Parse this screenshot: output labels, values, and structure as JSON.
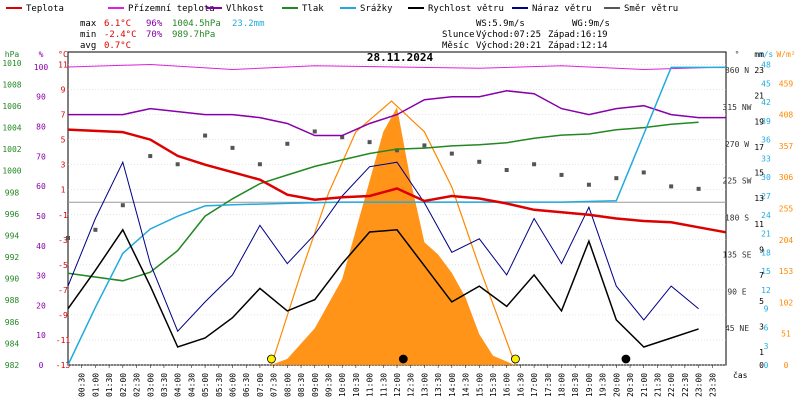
{
  "legend": [
    {
      "label": "Teplota",
      "color": "#dd0000"
    },
    {
      "label": "Přízemní teplota",
      "color": "#dd22dd"
    },
    {
      "label": "Vlhkost",
      "color": "#8800aa"
    },
    {
      "label": "Tlak",
      "color": "#228822"
    },
    {
      "label": "Srážky",
      "color": "#22aadd"
    },
    {
      "label": "Rychlost větru",
      "color": "#000000"
    },
    {
      "label": "Náraz větru",
      "color": "#000088"
    },
    {
      "label": "Směr větru",
      "color": "#555555"
    }
  ],
  "stats": {
    "max_label": "max",
    "min_label": "min",
    "avg_label": "avg",
    "max_temp": "6.1°C",
    "max_hum": "96%",
    "max_press": "1004.5hPa",
    "max_rain": "23.2mm",
    "min_temp": "-2.4°C",
    "min_hum": "70%",
    "min_press": "989.7hPa",
    "avg_temp": "0.7°C"
  },
  "wind_info": {
    "ws": "WS:5.9m/s",
    "wg": "WG:9m/s"
  },
  "sun": {
    "label": "Slunce",
    "rise": "Východ:07:25",
    "set": "Západ:16:19"
  },
  "moon": {
    "label": "Měsíc",
    "rise": "Východ:20:21",
    "set": "Západ:12:14"
  },
  "chart_data": {
    "type": "line",
    "title": "28.11.2024",
    "xlabel": "čas",
    "x_ticks": [
      "00:30",
      "01:00",
      "01:30",
      "02:00",
      "02:30",
      "03:00",
      "03:30",
      "04:00",
      "04:30",
      "05:00",
      "05:30",
      "06:00",
      "06:30",
      "07:00",
      "07:30",
      "08:00",
      "08:30",
      "09:00",
      "09:30",
      "10:00",
      "10:30",
      "11:00",
      "11:30",
      "12:00",
      "12:30",
      "13:00",
      "13:30",
      "14:00",
      "14:30",
      "15:00",
      "15:30",
      "16:00",
      "16:30",
      "17:00",
      "17:30",
      "18:00",
      "18:30",
      "19:00",
      "19:30",
      "20:00",
      "20:30",
      "21:00",
      "21:30",
      "22:00",
      "22:30",
      "23:00",
      "23:30"
    ],
    "axes": {
      "hpa": {
        "label": "hPa",
        "ticks": [
          "1010",
          "1008",
          "1006",
          "1004",
          "1002",
          "1000",
          "998",
          "996",
          "994",
          "992",
          "990",
          "988",
          "986",
          "984",
          "982"
        ],
        "range": [
          982,
          1011
        ]
      },
      "percent": {
        "label": "%",
        "ticks": [
          "100",
          "90",
          "80",
          "70",
          "60",
          "50",
          "40",
          "30",
          "20",
          "10",
          "0"
        ],
        "range": [
          0,
          105
        ]
      },
      "celsius": {
        "label": "°C",
        "ticks": [
          "11",
          "9",
          "7",
          "5",
          "3",
          "1",
          "-1",
          "-3",
          "-5",
          "-7",
          "-9",
          "-11",
          "-13"
        ],
        "range": [
          -13,
          12
        ]
      },
      "direction": {
        "label": "°",
        "ticks": [
          "360 N",
          "315 NW",
          "270 W",
          "225 SW",
          "180 S",
          "135 SE",
          "90 E",
          "45 NE"
        ],
        "range": [
          0,
          382
        ]
      },
      "ms": {
        "label": "m/s",
        "ticks": [
          "0",
          "3",
          "6",
          "9",
          "12",
          "15",
          "18",
          "21",
          "24",
          "27",
          "30",
          "33",
          "36",
          "39",
          "42",
          "45",
          "48"
        ],
        "range": [
          0,
          50
        ]
      },
      "mm": {
        "label": "mm",
        "ticks": [
          "0",
          "1",
          "3",
          "5",
          "7",
          "9",
          "11",
          "13",
          "15",
          "17",
          "19",
          "21",
          "23"
        ],
        "range": [
          0,
          24.4
        ]
      },
      "wm2": {
        "label": "W/m²",
        "ticks": [
          "0",
          "51",
          "102",
          "153",
          "204",
          "255",
          "306",
          "357",
          "408",
          "459"
        ],
        "range": [
          0,
          510
        ]
      }
    },
    "zero_line_celsius": 0,
    "temperature": [
      [
        0,
        5.8
      ],
      [
        2,
        5.6
      ],
      [
        3,
        5.0
      ],
      [
        4,
        3.7
      ],
      [
        5,
        3.0
      ],
      [
        6,
        2.4
      ],
      [
        7,
        1.8
      ],
      [
        8,
        0.6
      ],
      [
        9,
        0.2
      ],
      [
        10,
        0.4
      ],
      [
        11,
        0.5
      ],
      [
        12,
        1.1
      ],
      [
        13,
        0.1
      ],
      [
        14,
        0.5
      ],
      [
        15,
        0.3
      ],
      [
        16,
        -0.1
      ],
      [
        17,
        -0.6
      ],
      [
        18,
        -0.8
      ],
      [
        19,
        -1.0
      ],
      [
        20,
        -1.3
      ],
      [
        21,
        -1.5
      ],
      [
        22,
        -1.6
      ],
      [
        23,
        -2.0
      ],
      [
        24,
        -2.4
      ]
    ],
    "ground_temperature": [
      [
        0,
        10.8
      ],
      [
        3,
        11.0
      ],
      [
        6,
        10.6
      ],
      [
        9,
        10.9
      ],
      [
        12,
        10.8
      ],
      [
        15,
        10.7
      ],
      [
        18,
        10.9
      ],
      [
        21,
        10.6
      ],
      [
        24,
        10.8
      ]
    ],
    "humidity": [
      [
        0,
        84
      ],
      [
        2,
        84
      ],
      [
        3,
        86
      ],
      [
        4,
        85
      ],
      [
        5,
        84
      ],
      [
        6,
        84
      ],
      [
        7,
        83
      ],
      [
        8,
        81
      ],
      [
        9,
        77
      ],
      [
        10,
        77
      ],
      [
        11,
        81
      ],
      [
        12,
        84
      ],
      [
        13,
        89
      ],
      [
        14,
        90
      ],
      [
        15,
        90
      ],
      [
        16,
        92
      ],
      [
        17,
        91
      ],
      [
        18,
        86
      ],
      [
        19,
        84
      ],
      [
        20,
        86
      ],
      [
        21,
        87
      ],
      [
        22,
        84
      ],
      [
        23,
        83
      ],
      [
        24,
        83
      ]
    ],
    "pressure": [
      [
        0,
        990.5
      ],
      [
        2,
        989.8
      ],
      [
        3,
        990.6
      ],
      [
        4,
        992.6
      ],
      [
        5,
        995.8
      ],
      [
        6,
        997.4
      ],
      [
        7,
        998.8
      ],
      [
        8,
        999.6
      ],
      [
        9,
        1000.4
      ],
      [
        10,
        1001.0
      ],
      [
        11,
        1001.6
      ],
      [
        12,
        1002.0
      ],
      [
        13,
        1002.1
      ],
      [
        14,
        1002.3
      ],
      [
        15,
        1002.4
      ],
      [
        16,
        1002.6
      ],
      [
        17,
        1003.0
      ],
      [
        18,
        1003.3
      ],
      [
        19,
        1003.4
      ],
      [
        20,
        1003.8
      ],
      [
        21,
        1004.0
      ],
      [
        22,
        1004.3
      ],
      [
        23,
        1004.5
      ]
    ],
    "rain": [
      [
        0,
        0.0
      ],
      [
        1,
        4.5
      ],
      [
        2,
        8.7
      ],
      [
        3,
        10.6
      ],
      [
        4,
        11.6
      ],
      [
        5,
        12.4
      ],
      [
        6,
        12.5
      ],
      [
        8,
        12.6
      ],
      [
        10,
        12.7
      ],
      [
        12,
        12.7
      ],
      [
        14,
        12.7
      ],
      [
        16,
        12.7
      ],
      [
        18,
        12.7
      ],
      [
        20,
        12.8
      ],
      [
        21,
        18.0
      ],
      [
        22,
        23.2
      ],
      [
        24,
        23.2
      ]
    ],
    "wind_speed": [
      [
        0,
        2.5
      ],
      [
        1,
        4.2
      ],
      [
        2,
        6.0
      ],
      [
        3,
        3.5
      ],
      [
        4,
        0.8
      ],
      [
        5,
        1.2
      ],
      [
        6,
        2.1
      ],
      [
        7,
        3.4
      ],
      [
        8,
        2.4
      ],
      [
        9,
        2.9
      ],
      [
        10,
        4.5
      ],
      [
        11,
        5.9
      ],
      [
        12,
        6.0
      ],
      [
        13,
        4.4
      ],
      [
        14,
        2.8
      ],
      [
        15,
        3.5
      ],
      [
        16,
        2.6
      ],
      [
        17,
        4.0
      ],
      [
        18,
        2.4
      ],
      [
        19,
        5.5
      ],
      [
        20,
        2.0
      ],
      [
        21,
        0.8
      ],
      [
        22,
        1.2
      ],
      [
        23,
        1.6
      ]
    ],
    "wind_gust": [
      [
        0,
        3.5
      ],
      [
        1,
        6.5
      ],
      [
        2,
        9.0
      ],
      [
        3,
        4.5
      ],
      [
        4,
        1.5
      ],
      [
        5,
        2.8
      ],
      [
        6,
        4.0
      ],
      [
        7,
        6.2
      ],
      [
        8,
        4.5
      ],
      [
        9,
        5.8
      ],
      [
        10,
        7.5
      ],
      [
        11,
        8.8
      ],
      [
        12,
        9.0
      ],
      [
        13,
        7.2
      ],
      [
        14,
        5.0
      ],
      [
        15,
        5.6
      ],
      [
        16,
        4.0
      ],
      [
        17,
        6.5
      ],
      [
        18,
        4.5
      ],
      [
        19,
        7.0
      ],
      [
        20,
        3.5
      ],
      [
        21,
        2.0
      ],
      [
        22,
        3.5
      ],
      [
        23,
        2.5
      ]
    ],
    "wind_direction_deg": [
      [
        0,
        155
      ],
      [
        1,
        165
      ],
      [
        2,
        195
      ],
      [
        3,
        255
      ],
      [
        4,
        245
      ],
      [
        5,
        280
      ],
      [
        6,
        265
      ],
      [
        7,
        245
      ],
      [
        8,
        270
      ],
      [
        9,
        285
      ],
      [
        10,
        278
      ],
      [
        11,
        272
      ],
      [
        12,
        262
      ],
      [
        13,
        268
      ],
      [
        14,
        258
      ],
      [
        15,
        248
      ],
      [
        16,
        238
      ],
      [
        17,
        245
      ],
      [
        18,
        232
      ],
      [
        19,
        220
      ],
      [
        20,
        228
      ],
      [
        21,
        235
      ],
      [
        22,
        218
      ],
      [
        23,
        215
      ]
    ],
    "solar_radiation": [
      [
        7.4,
        0
      ],
      [
        8,
        10
      ],
      [
        9,
        60
      ],
      [
        10,
        140
      ],
      [
        10.5,
        220
      ],
      [
        11,
        300
      ],
      [
        11.5,
        380
      ],
      [
        12,
        420
      ],
      [
        12.5,
        300
      ],
      [
        13,
        200
      ],
      [
        13.5,
        180
      ],
      [
        14,
        150
      ],
      [
        14.5,
        110
      ],
      [
        15,
        50
      ],
      [
        15.5,
        15
      ],
      [
        16.3,
        0
      ]
    ],
    "solar_theoretical": [
      [
        7.42,
        0
      ],
      [
        8.5,
        150
      ],
      [
        9.5,
        280
      ],
      [
        10.5,
        380
      ],
      [
        11.8,
        430
      ],
      [
        13,
        380
      ],
      [
        14,
        290
      ],
      [
        15,
        160
      ],
      [
        16.32,
        0
      ]
    ],
    "markers": [
      {
        "kind": "sunrise",
        "time": 7.42
      },
      {
        "kind": "sunset",
        "time": 16.32
      },
      {
        "kind": "moonset",
        "time": 12.23
      },
      {
        "kind": "moonrise",
        "time": 20.35
      }
    ]
  }
}
